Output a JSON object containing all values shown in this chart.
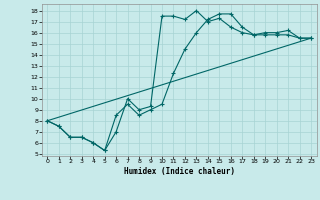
{
  "xlabel": "Humidex (Indice chaleur)",
  "bg_color": "#c8eaea",
  "grid_color": "#a8d4d4",
  "line_color": "#006666",
  "xlim": [
    -0.5,
    23.5
  ],
  "ylim": [
    4.8,
    18.6
  ],
  "xticks": [
    0,
    1,
    2,
    3,
    4,
    5,
    6,
    7,
    8,
    9,
    10,
    11,
    12,
    13,
    14,
    15,
    16,
    17,
    18,
    19,
    20,
    21,
    22,
    23
  ],
  "yticks": [
    5,
    6,
    7,
    8,
    9,
    10,
    11,
    12,
    13,
    14,
    15,
    16,
    17,
    18
  ],
  "line1_x": [
    0,
    1,
    2,
    3,
    4,
    5,
    6,
    7,
    8,
    9,
    10,
    11,
    12,
    13,
    14,
    15,
    16,
    17,
    18,
    19,
    20,
    21,
    22,
    23
  ],
  "line1_y": [
    8.0,
    7.5,
    6.5,
    6.5,
    6.0,
    5.3,
    7.0,
    10.0,
    9.0,
    9.3,
    17.5,
    17.5,
    17.2,
    18.0,
    17.0,
    17.3,
    16.5,
    16.0,
    15.8,
    16.0,
    16.0,
    16.2,
    15.5,
    15.5
  ],
  "line2_x": [
    0,
    1,
    2,
    3,
    4,
    5,
    6,
    7,
    8,
    9,
    10,
    11,
    12,
    13,
    14,
    15,
    16,
    17,
    18,
    19,
    20,
    21,
    22,
    23
  ],
  "line2_y": [
    8.0,
    7.5,
    6.5,
    6.5,
    6.0,
    5.3,
    8.5,
    9.5,
    8.5,
    9.0,
    9.5,
    12.3,
    14.5,
    16.0,
    17.2,
    17.7,
    17.7,
    16.5,
    15.8,
    15.8,
    15.8,
    15.8,
    15.5,
    15.5
  ],
  "line3_x": [
    0,
    23
  ],
  "line3_y": [
    8.0,
    15.5
  ]
}
